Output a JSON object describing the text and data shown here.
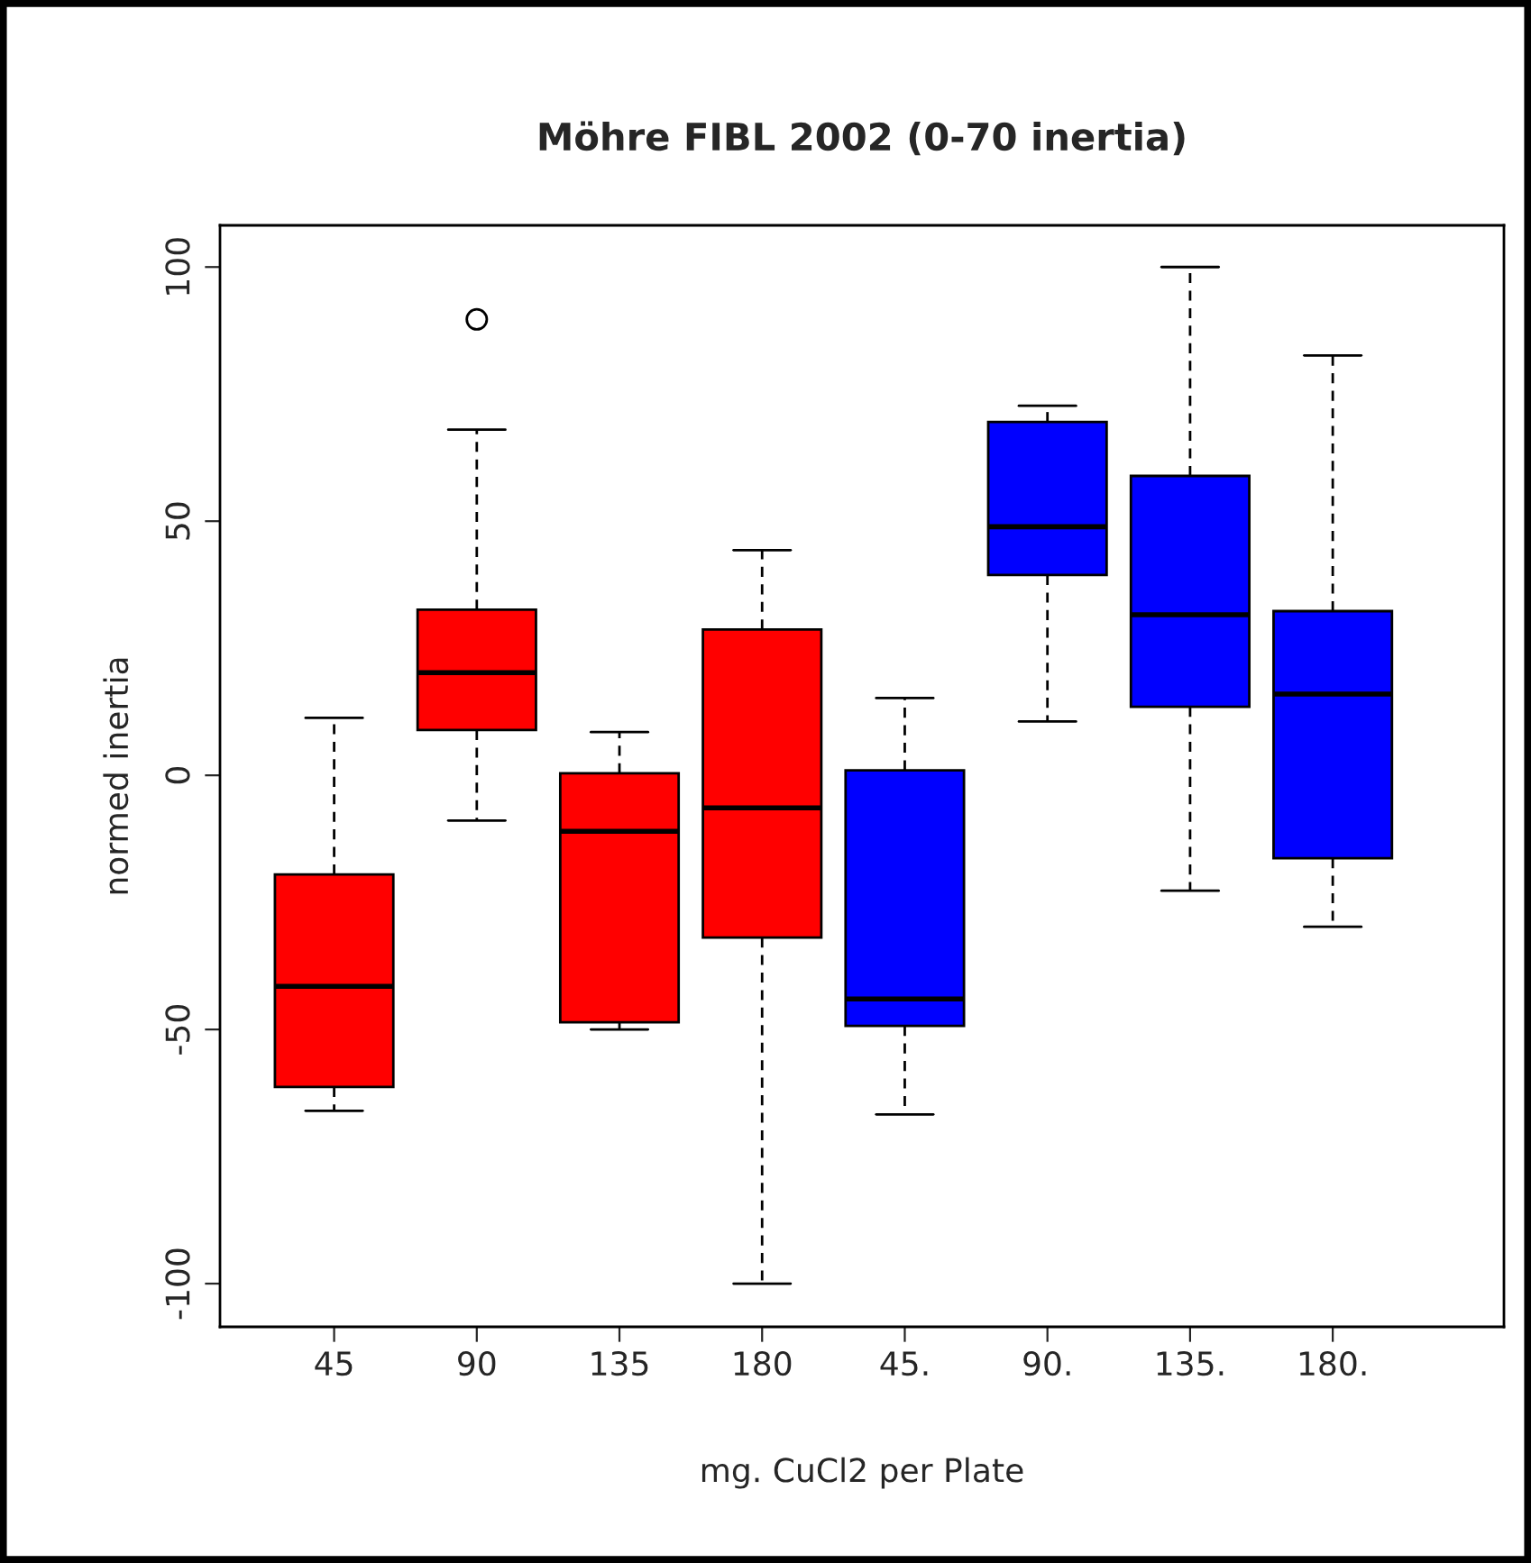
{
  "chart_data": {
    "type": "box",
    "title": "Möhre FIBL 2002 (0-70 inertia)",
    "xlabel": "mg. CuCl2 per Plate",
    "ylabel": "normed inertia",
    "categories": [
      "45",
      "90",
      "135",
      "180",
      "45.",
      "90.",
      "135.",
      "180."
    ],
    "colors": [
      "#ff0000",
      "#ff0000",
      "#ff0000",
      "#ff0000",
      "#0000ff",
      "#0000ff",
      "#0000ff",
      "#0000ff"
    ],
    "boxes": [
      {
        "low": -66,
        "q1": -61.3,
        "median": -41.5,
        "q3": -19.5,
        "high": 11.3
      },
      {
        "low": -8.9,
        "q1": 8.9,
        "median": 20.2,
        "q3": 32.6,
        "high": 68,
        "outliers": [
          89.7
        ]
      },
      {
        "low": -50,
        "q1": -48.6,
        "median": -11,
        "q3": 0.4,
        "high": 8.5
      },
      {
        "low": -100,
        "q1": -31.9,
        "median": -6.4,
        "q3": 28.7,
        "high": 44.3
      },
      {
        "low": -66.7,
        "q1": -49.3,
        "median": -44,
        "q3": 1,
        "high": 15.2
      },
      {
        "low": 10.6,
        "q1": 39.4,
        "median": 48.9,
        "q3": 69.5,
        "high": 72.7
      },
      {
        "low": -22.7,
        "q1": 13.5,
        "median": 31.6,
        "q3": 58.9,
        "high": 100
      },
      {
        "low": -29.8,
        "q1": -16.3,
        "median": 16,
        "q3": 32.3,
        "high": 82.6
      }
    ],
    "ylim": [
      -108.5,
      108.2
    ],
    "yticks": [
      -100,
      -50,
      0,
      50,
      100
    ],
    "grid": false
  }
}
